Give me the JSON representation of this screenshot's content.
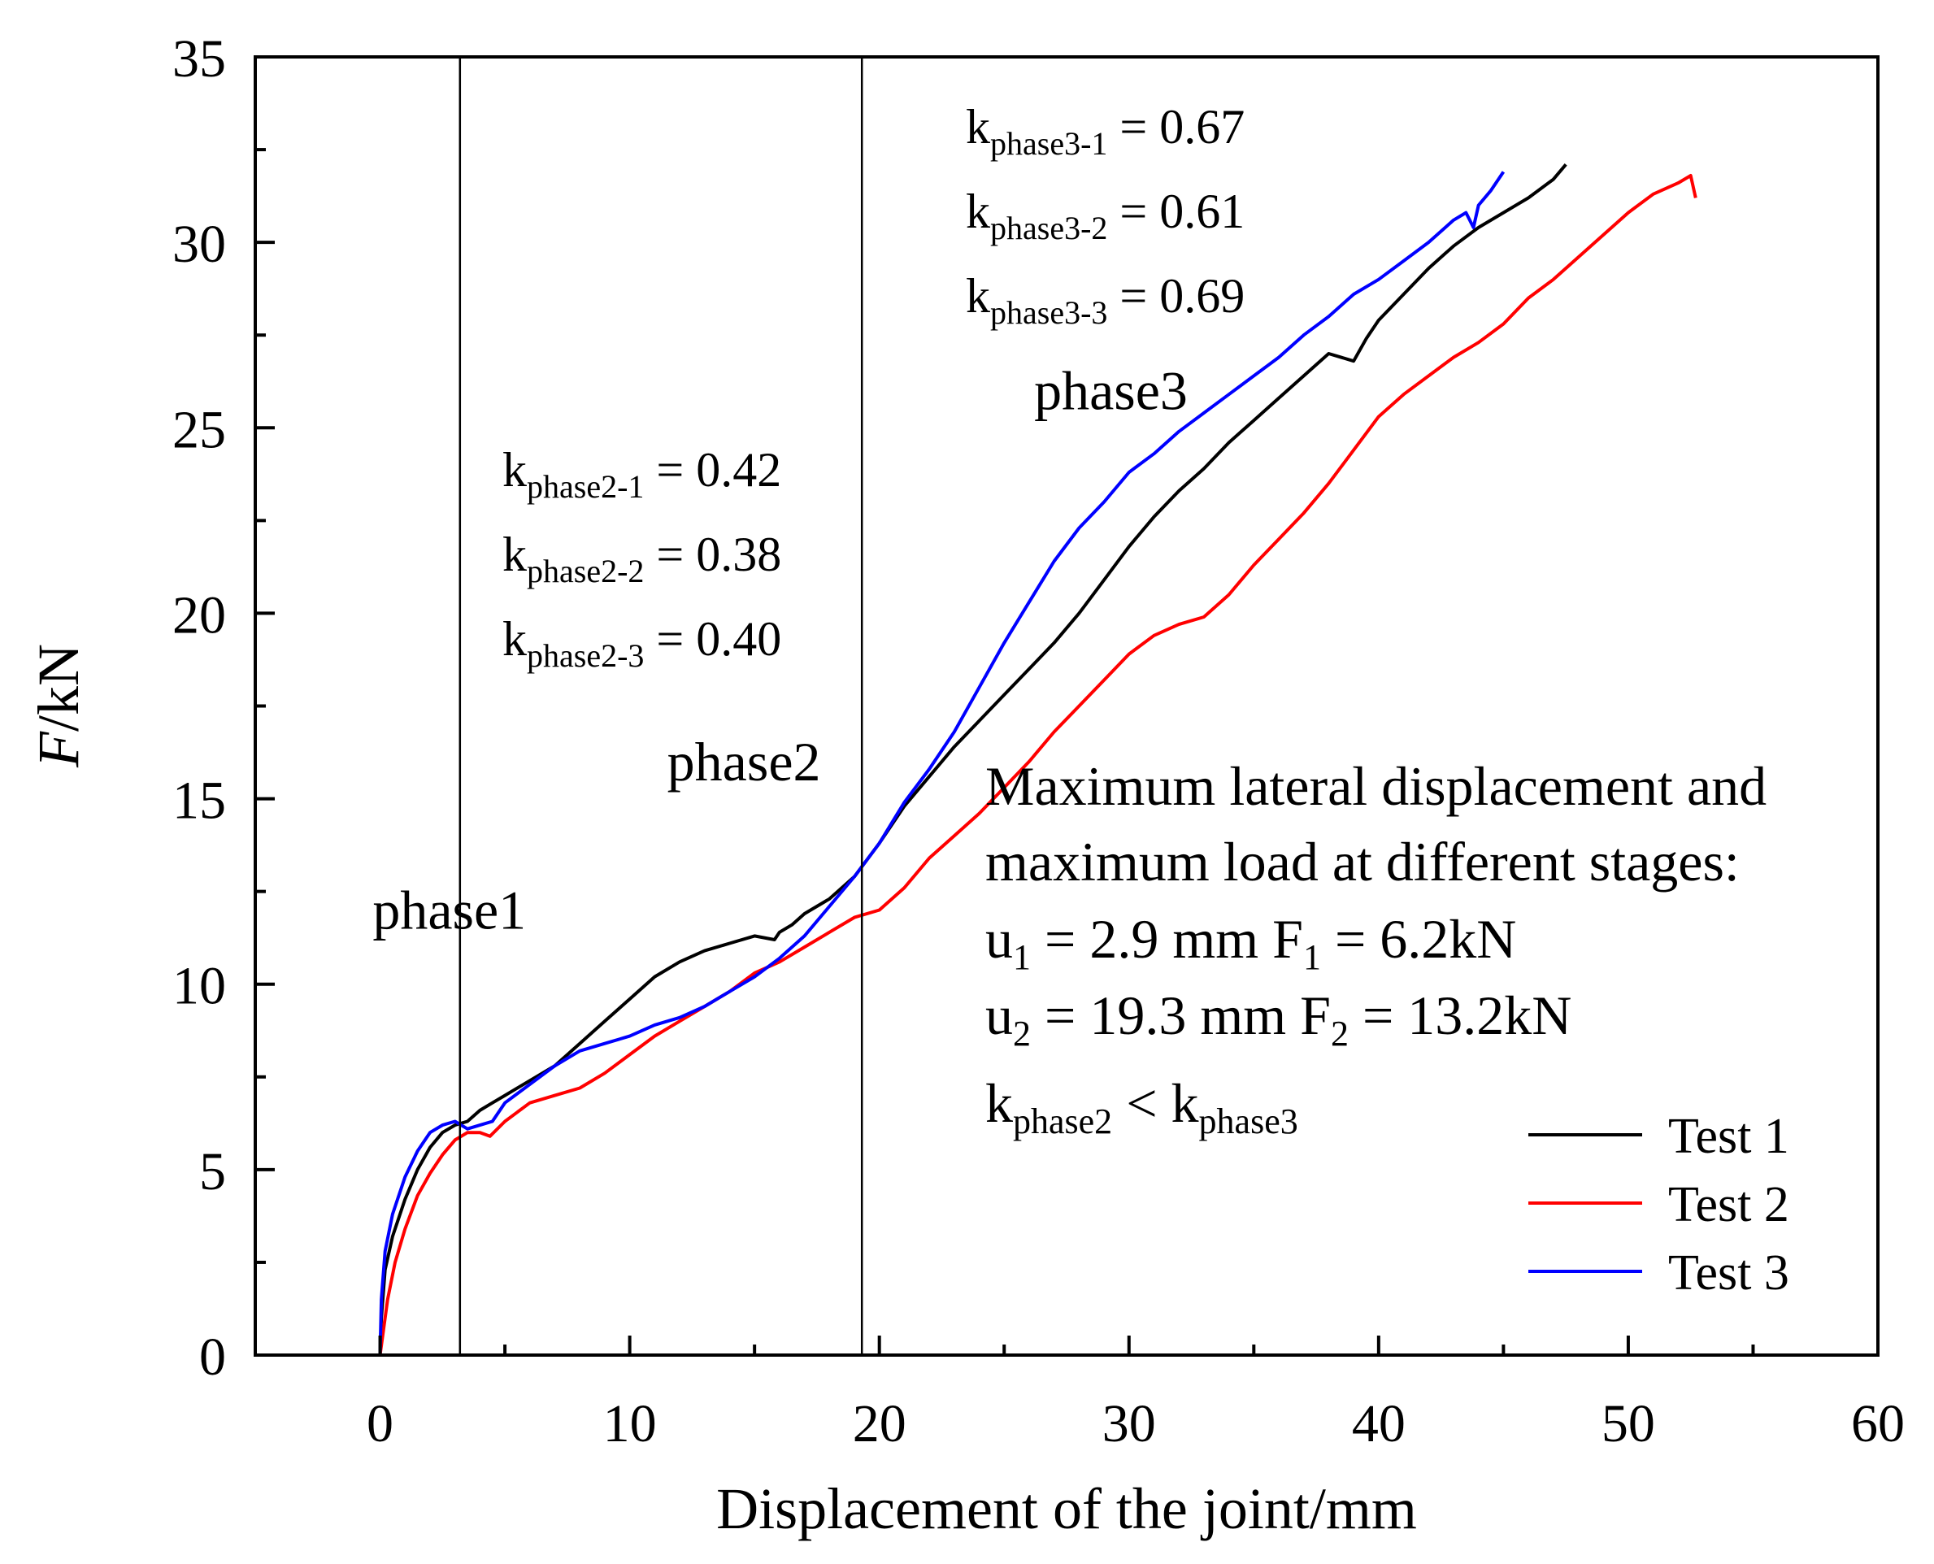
{
  "chart_data": {
    "type": "line",
    "title": "",
    "xlabel": "Displacement of the joint/mm",
    "ylabel_italic": "F",
    "ylabel_rest": "/kN",
    "xlim": [
      -5,
      60
    ],
    "ylim": [
      0,
      35
    ],
    "xticks": [
      0,
      10,
      20,
      30,
      40,
      50,
      60
    ],
    "xtick_labels": [
      "0",
      "10",
      "20",
      "30",
      "40",
      "50",
      "60"
    ],
    "yticks": [
      0,
      5,
      10,
      15,
      20,
      25,
      30,
      35
    ],
    "ytick_labels": [
      "0",
      "5",
      "10",
      "15",
      "20",
      "25",
      "30",
      "35"
    ],
    "grid": false,
    "legend_position": "bottom-right",
    "phase_boundaries": [
      3.2,
      19.3
    ],
    "phase_labels": [
      {
        "text": "phase1",
        "x": -0.3,
        "y": 11.5
      },
      {
        "text": "phase2",
        "x": 11.5,
        "y": 15.5
      },
      {
        "text": "phase3",
        "x": 26.2,
        "y": 25.5
      }
    ],
    "series": [
      {
        "name": "Test 1",
        "color": "#000000",
        "x": [
          0,
          0.05,
          0.2,
          0.5,
          1.0,
          1.5,
          2.0,
          2.5,
          3.0,
          3.5,
          4.0,
          4.5,
          5.0,
          6.0,
          7.0,
          8.0,
          9.0,
          10.0,
          11.0,
          12.0,
          13.0,
          14.0,
          15.0,
          15.8,
          16.0,
          16.5,
          17.0,
          18.0,
          19.0,
          20.0,
          21.0,
          22.0,
          23.0,
          24.0,
          25.0,
          26.0,
          27.0,
          28.0,
          29.0,
          30.0,
          31.0,
          32.0,
          33.0,
          34.0,
          35.0,
          36.0,
          37.0,
          38.0,
          39.0,
          39.5,
          40.0,
          41.0,
          42.0,
          43.0,
          44.0,
          45.0,
          46.0,
          47.0,
          47.5
        ],
        "y": [
          0,
          1.0,
          2.3,
          3.2,
          4.2,
          5.0,
          5.6,
          6.0,
          6.2,
          6.3,
          6.6,
          6.8,
          7.0,
          7.4,
          7.8,
          8.4,
          9.0,
          9.6,
          10.2,
          10.6,
          10.9,
          11.1,
          11.3,
          11.2,
          11.4,
          11.6,
          11.9,
          12.3,
          12.9,
          13.8,
          14.8,
          15.6,
          16.4,
          17.1,
          17.8,
          18.5,
          19.2,
          20.0,
          20.9,
          21.8,
          22.6,
          23.3,
          23.9,
          24.6,
          25.2,
          25.8,
          26.4,
          27.0,
          26.8,
          27.4,
          27.9,
          28.6,
          29.3,
          29.9,
          30.4,
          30.8,
          31.2,
          31.7,
          32.1
        ]
      },
      {
        "name": "Test 2",
        "color": "#ff0000",
        "x": [
          0,
          0.1,
          0.3,
          0.6,
          1.0,
          1.5,
          2.0,
          2.5,
          3.0,
          3.5,
          4.0,
          4.4,
          5.0,
          6.0,
          7.0,
          8.0,
          9.0,
          10.0,
          11.0,
          12.0,
          13.0,
          14.0,
          15.0,
          16.0,
          17.0,
          18.0,
          19.0,
          20.0,
          21.0,
          22.0,
          23.0,
          24.0,
          25.0,
          26.0,
          27.0,
          28.0,
          29.0,
          30.0,
          31.0,
          32.0,
          33.0,
          34.0,
          35.0,
          36.0,
          37.0,
          38.0,
          39.0,
          40.0,
          41.0,
          42.0,
          43.0,
          44.0,
          45.0,
          46.0,
          47.0,
          48.0,
          49.0,
          50.0,
          51.0,
          52.0,
          52.5,
          52.7
        ],
        "y": [
          0,
          0.5,
          1.5,
          2.5,
          3.4,
          4.3,
          4.9,
          5.4,
          5.8,
          6.0,
          6.0,
          5.9,
          6.3,
          6.8,
          7.0,
          7.2,
          7.6,
          8.1,
          8.6,
          9.0,
          9.4,
          9.8,
          10.3,
          10.6,
          11.0,
          11.4,
          11.8,
          12.0,
          12.6,
          13.4,
          14.0,
          14.6,
          15.3,
          16.0,
          16.8,
          17.5,
          18.2,
          18.9,
          19.4,
          19.7,
          19.9,
          20.5,
          21.3,
          22.0,
          22.7,
          23.5,
          24.4,
          25.3,
          25.9,
          26.4,
          26.9,
          27.3,
          27.8,
          28.5,
          29.0,
          29.6,
          30.2,
          30.8,
          31.3,
          31.6,
          31.8,
          31.2
        ]
      },
      {
        "name": "Test 3",
        "color": "#0000ff",
        "x": [
          0,
          0.05,
          0.2,
          0.5,
          1.0,
          1.5,
          2.0,
          2.5,
          3.0,
          3.5,
          4.0,
          4.5,
          5.0,
          6.0,
          7.0,
          8.0,
          9.0,
          10.0,
          11.0,
          12.0,
          13.0,
          14.0,
          15.0,
          16.0,
          17.0,
          18.0,
          19.0,
          20.0,
          21.0,
          22.0,
          23.0,
          24.0,
          25.0,
          26.0,
          27.0,
          28.0,
          29.0,
          30.0,
          31.0,
          32.0,
          33.0,
          34.0,
          35.0,
          36.0,
          37.0,
          38.0,
          39.0,
          40.0,
          41.0,
          42.0,
          43.0,
          43.5,
          43.8,
          44.0,
          44.5,
          45.0
        ],
        "y": [
          0,
          1.5,
          2.8,
          3.8,
          4.8,
          5.5,
          6.0,
          6.2,
          6.3,
          6.1,
          6.2,
          6.3,
          6.8,
          7.3,
          7.8,
          8.2,
          8.4,
          8.6,
          8.9,
          9.1,
          9.4,
          9.8,
          10.2,
          10.7,
          11.3,
          12.1,
          12.9,
          13.8,
          14.9,
          15.8,
          16.8,
          18.0,
          19.2,
          20.3,
          21.4,
          22.3,
          23.0,
          23.8,
          24.3,
          24.9,
          25.4,
          25.9,
          26.4,
          26.9,
          27.5,
          28.0,
          28.6,
          29.0,
          29.5,
          30.0,
          30.6,
          30.8,
          30.4,
          31.0,
          31.4,
          31.9
        ]
      }
    ],
    "annotations_phase2": {
      "lines": [
        {
          "k": "k",
          "sub": "phase2-1",
          "rest": " = 0.42"
        },
        {
          "k": "k",
          "sub": "phase2-2",
          "rest": " = 0.38"
        },
        {
          "k": "k",
          "sub": "phase2-3",
          "rest": " = 0.40"
        }
      ]
    },
    "annotations_phase3": {
      "lines": [
        {
          "k": "k",
          "sub": "phase3-1",
          "rest": " = 0.67"
        },
        {
          "k": "k",
          "sub": "phase3-2",
          "rest": " = 0.61"
        },
        {
          "k": "k",
          "sub": "phase3-3",
          "rest": " = 0.69"
        }
      ]
    },
    "summary": {
      "line1": "Maximum lateral displacement and",
      "line2": "maximum load at different stages:",
      "u1": {
        "a": "u",
        "a_sub": "1",
        "mid": " = 2.9 mm F",
        "b_sub": "1",
        "end": " = 6.2kN"
      },
      "u2": {
        "a": "u",
        "a_sub": "2",
        "mid": " = 19.3 mm F",
        "b_sub": "2",
        "end": " = 13.2kN"
      },
      "kcmp": {
        "a": "k",
        "a_sub": "phase2",
        "mid": " < k",
        "b_sub": "phase3"
      }
    }
  }
}
